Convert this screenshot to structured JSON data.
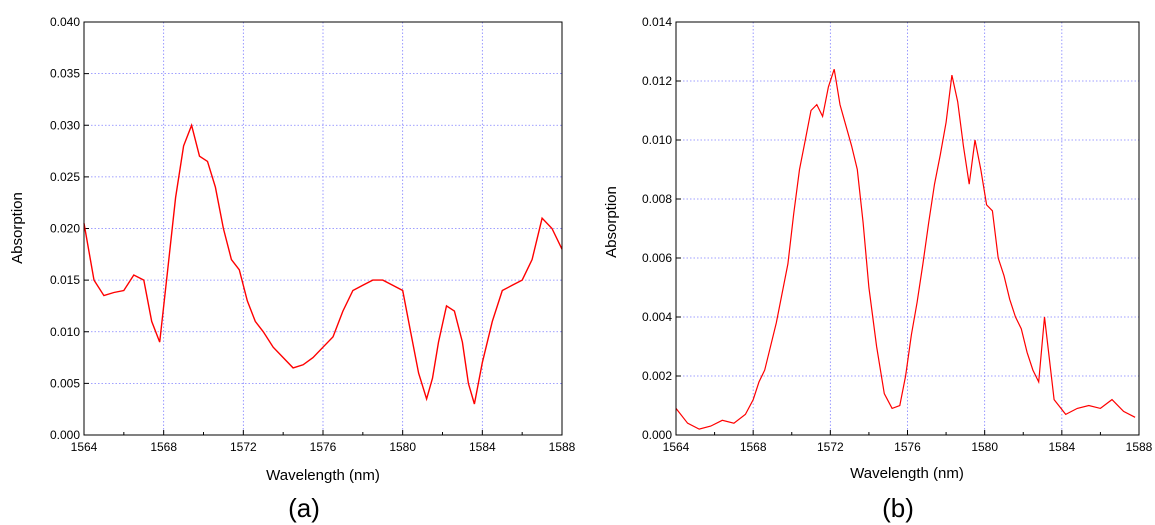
{
  "chart_data": [
    {
      "type": "line",
      "panel_label": "(a)",
      "xlabel": "Wavelength (nm)",
      "ylabel": "Absorption",
      "xlim": [
        1564,
        1588
      ],
      "ylim": [
        0.0,
        0.04
      ],
      "xticks": [
        "1564",
        "1568",
        "1572",
        "1576",
        "1580",
        "1584",
        "1588"
      ],
      "yticks": [
        "0.000",
        "0.005",
        "0.010",
        "0.015",
        "0.020",
        "0.025",
        "0.030",
        "0.035",
        "0.040"
      ],
      "grid": true,
      "color": "#ff0000",
      "series": [
        {
          "x": [
            1564.0,
            1564.5,
            1565.0,
            1565.5,
            1566.0,
            1566.5,
            1567.0,
            1567.4,
            1567.8,
            1568.2,
            1568.6,
            1569.0,
            1569.4,
            1569.8,
            1570.2,
            1570.6,
            1571.0,
            1571.4,
            1571.8,
            1572.2,
            1572.6,
            1573.0,
            1573.5,
            1574.0,
            1574.5,
            1575.0,
            1575.5,
            1576.0,
            1576.5,
            1577.0,
            1577.5,
            1578.0,
            1578.5,
            1579.0,
            1579.5,
            1580.0,
            1580.4,
            1580.8,
            1581.2,
            1581.5,
            1581.8,
            1582.2,
            1582.6,
            1583.0,
            1583.3,
            1583.6,
            1584.0,
            1584.5,
            1585.0,
            1585.5,
            1586.0,
            1586.5,
            1587.0,
            1587.5,
            1588.0
          ],
          "y": [
            0.0205,
            0.015,
            0.0135,
            0.0138,
            0.014,
            0.0155,
            0.015,
            0.011,
            0.009,
            0.016,
            0.023,
            0.028,
            0.03,
            0.027,
            0.0265,
            0.024,
            0.02,
            0.017,
            0.016,
            0.013,
            0.011,
            0.01,
            0.0085,
            0.0075,
            0.0065,
            0.0068,
            0.0075,
            0.0085,
            0.0095,
            0.012,
            0.014,
            0.0145,
            0.015,
            0.015,
            0.0145,
            0.014,
            0.01,
            0.006,
            0.0035,
            0.0055,
            0.009,
            0.0125,
            0.012,
            0.009,
            0.005,
            0.003,
            0.007,
            0.011,
            0.014,
            0.0145,
            0.015,
            0.017,
            0.021,
            0.02,
            0.018
          ]
        }
      ]
    },
    {
      "type": "line",
      "panel_label": "(b)",
      "xlabel": "Wavelength (nm)",
      "ylabel": "Absorption",
      "xlim": [
        1564,
        1588
      ],
      "ylim": [
        0.0,
        0.014
      ],
      "xticks": [
        "1564",
        "1568",
        "1572",
        "1576",
        "1580",
        "1584",
        "1588"
      ],
      "yticks": [
        "0.000",
        "0.002",
        "0.004",
        "0.006",
        "0.008",
        "0.010",
        "0.012",
        "0.014"
      ],
      "grid": true,
      "color": "#ff0000",
      "series": [
        {
          "x": [
            1564.0,
            1564.6,
            1565.2,
            1565.8,
            1566.4,
            1567.0,
            1567.6,
            1568.0,
            1568.3,
            1568.6,
            1568.9,
            1569.2,
            1569.5,
            1569.8,
            1570.1,
            1570.4,
            1570.7,
            1571.0,
            1571.3,
            1571.6,
            1571.9,
            1572.2,
            1572.5,
            1572.8,
            1573.1,
            1573.4,
            1573.7,
            1574.0,
            1574.4,
            1574.8,
            1575.2,
            1575.6,
            1575.9,
            1576.2,
            1576.5,
            1576.8,
            1577.1,
            1577.4,
            1577.7,
            1578.0,
            1578.3,
            1578.6,
            1578.9,
            1579.2,
            1579.5,
            1579.8,
            1580.1,
            1580.4,
            1580.7,
            1581.0,
            1581.3,
            1581.6,
            1581.9,
            1582.2,
            1582.5,
            1582.8,
            1583.1,
            1583.6,
            1584.2,
            1584.8,
            1585.4,
            1586.0,
            1586.6,
            1587.2,
            1587.8
          ],
          "y": [
            0.0009,
            0.0004,
            0.0002,
            0.0003,
            0.0005,
            0.0004,
            0.0007,
            0.0012,
            0.0018,
            0.0022,
            0.003,
            0.0038,
            0.0048,
            0.0058,
            0.0075,
            0.009,
            0.01,
            0.011,
            0.0112,
            0.0108,
            0.0118,
            0.0124,
            0.0112,
            0.0105,
            0.0098,
            0.009,
            0.0072,
            0.005,
            0.003,
            0.0014,
            0.0009,
            0.001,
            0.002,
            0.0034,
            0.0045,
            0.0058,
            0.0072,
            0.0085,
            0.0095,
            0.0106,
            0.0122,
            0.0113,
            0.0098,
            0.0085,
            0.01,
            0.009,
            0.0078,
            0.0076,
            0.006,
            0.0054,
            0.0046,
            0.004,
            0.0036,
            0.0028,
            0.0022,
            0.0018,
            0.004,
            0.0012,
            0.0007,
            0.0009,
            0.001,
            0.0009,
            0.0012,
            0.0008,
            0.0006
          ]
        }
      ]
    }
  ]
}
